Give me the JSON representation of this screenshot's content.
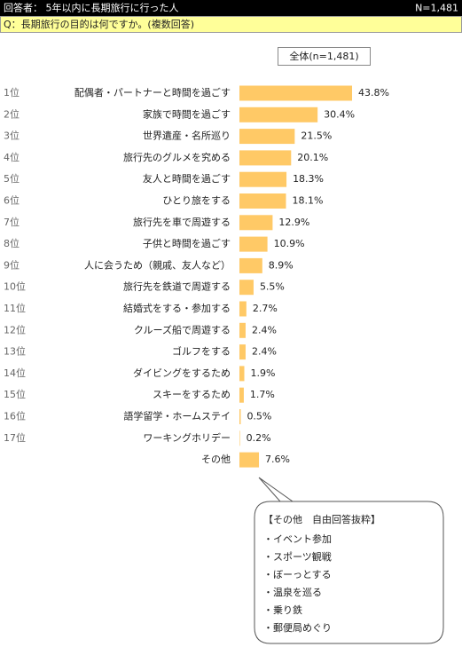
{
  "header": {
    "respondents": "回答者： 5年以内に長期旅行に行った人",
    "n": "N=1,481"
  },
  "question": "Q：長期旅行の目的は何ですか。(複数回答)",
  "chart_data": {
    "type": "bar",
    "ranks": [
      "1位",
      "2位",
      "3位",
      "4位",
      "5位",
      "6位",
      "7位",
      "8位",
      "9位",
      "10位",
      "11位",
      "12位",
      "13位",
      "14位",
      "15位",
      "16位",
      "17位",
      null
    ],
    "categories": [
      "配偶者・パートナーと時間を過ごす",
      "家族で時間を過ごす",
      "世界遺産・名所巡り",
      "旅行先のグルメを究める",
      "友人と時間を過ごす",
      "ひとり旅をする",
      "旅行先を車で周遊する",
      "子供と時間を過ごす",
      "人に会うため（親戚、友人など）",
      "旅行先を鉄道で周遊する",
      "結婚式をする・参加する",
      "クルーズ船で周遊する",
      "ゴルフをする",
      "ダイビングをするため",
      "スキーをするため",
      "語学留学・ホームステイ",
      "ワーキングホリデー",
      "その他"
    ],
    "series": [
      {
        "name": "全体(n=1,481)",
        "color": "#ffc966",
        "values": [
          43.8,
          30.4,
          21.5,
          20.1,
          18.3,
          18.1,
          12.9,
          10.9,
          8.9,
          5.5,
          2.7,
          2.4,
          2.4,
          1.9,
          1.7,
          0.5,
          0.2,
          7.6
        ],
        "value_labels": [
          "43.8%",
          "30.4%",
          "21.5%",
          "20.1%",
          "18.3%",
          "18.1%",
          "12.9%",
          "10.9%",
          "8.9%",
          "5.5%",
          "2.7%",
          "2.4%",
          "2.4%",
          "1.9%",
          "1.7%",
          "0.5%",
          "0.2%",
          "7.6%"
        ]
      }
    ]
  },
  "callout": {
    "title": "【その他　自由回答抜粋】",
    "items": [
      "・イベント参加",
      "・スポーツ観戦",
      "・ぼーっとする",
      "・温泉を巡る",
      "・乗り鉄",
      "・郵便局めぐり"
    ]
  }
}
